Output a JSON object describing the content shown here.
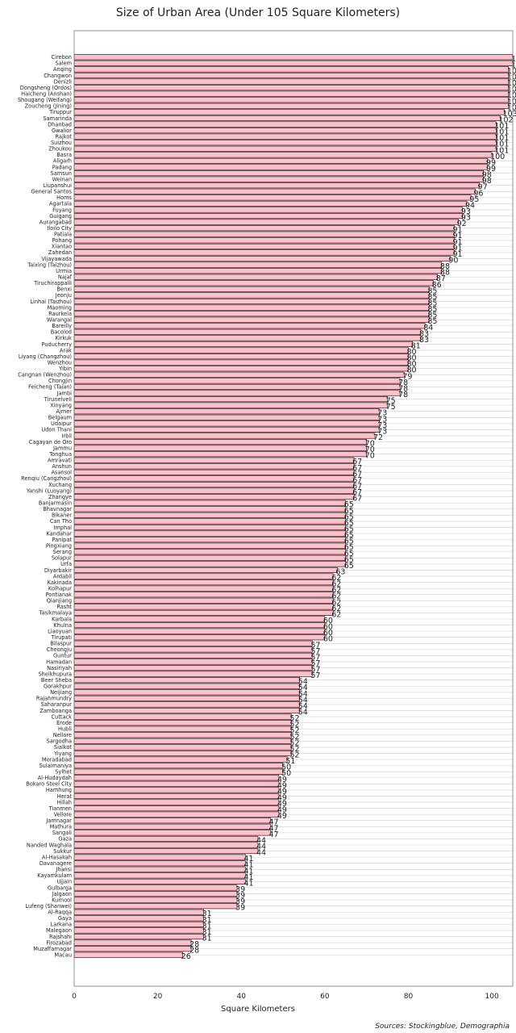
{
  "chart_data": {
    "type": "bar",
    "orientation": "horizontal",
    "title": "Size of Urban Area (Under 105 Square Kilometers)",
    "xlabel": "Square Kilometers",
    "ylabel": "",
    "xlim": [
      0,
      105
    ],
    "xticks": [
      0,
      20,
      40,
      60,
      80,
      100
    ],
    "bar_color": "#ffc0cb",
    "bar_edge_color": "#000000",
    "categories": [
      "Cirebon",
      "Salem",
      "Anqing",
      "Changwon",
      "Denizli",
      "Dongsheng (Ordos)",
      "Haicheng (Anshan)",
      "Shougang (Weifang)",
      "Zoucheng (Jining)",
      "Tiruppur",
      "Samarinda",
      "Dhanbad",
      "Gwalior",
      "Rajkot",
      "Suizhou",
      "Zhoukou",
      "Basra",
      "Aligarh",
      "Padang",
      "Samsun",
      "Weinan",
      "Liupanshui",
      "General Santos",
      "Homs",
      "Agartala",
      "Fuyang",
      "Guigang",
      "Aurangabad",
      "Iloilo City",
      "Patiala",
      "Pohang",
      "Xiantao",
      "Zahedan",
      "Vijayawada",
      "Taixing (Taizhou)",
      "Urmia",
      "Najaf",
      "Tiruchirappalli",
      "Benxi",
      "Jeonju",
      "Linhai (Taizhou)",
      "Maoming",
      "Raurkela",
      "Warangal",
      "Bareilly",
      "Bacolod",
      "Kirkuk",
      "Puducherry",
      "Arak",
      "Liyang (Changzhou)",
      "Wenzhou",
      "Yibin",
      "Cangnan (Wenzhou)",
      "Chongjin",
      "Feicheng (Taian)",
      "Jambi",
      "Tirunelveli",
      "Xinyang",
      "Ajmer",
      "Belgaum",
      "Udaipur",
      "Udon Thani",
      "Irbil",
      "Cagayan de Oro",
      "Jammu",
      "Tonghua",
      "Amravati",
      "Anshun",
      "Asansol",
      "Renqiu (Cangzhou)",
      "Xuchang",
      "Yanshi (Luoyang)",
      "Zhangye",
      "Banjarmasin",
      "Bhavnagar",
      "Bikaner",
      "Can Tho",
      "Imphal",
      "Kandahar",
      "Panipat",
      "Pingxiang",
      "Serang",
      "Solapur",
      "Urfa",
      "Diyarbakir",
      "Ardabil",
      "Kakinada",
      "Kolhapur",
      "Pontianak",
      "Qianjiang",
      "Rasht",
      "Tasikmalaya",
      "Karbala",
      "Khulna",
      "Liaoyuan",
      "Tirupati",
      "Bilaspur",
      "Cheongju",
      "Guntur",
      "Hamadan",
      "Nasiriyah",
      "Sheikhupura",
      "Beer Sheba",
      "Gorakhpur",
      "Neijiang",
      "Rajahmundry",
      "Saharanpur",
      "Zamboanga",
      "Cuttack",
      "Erode",
      "Hubli",
      "Nellore",
      "Sargodha",
      "Sialkot",
      "Yiyang",
      "Moradabad",
      "Sulaimaniya",
      "Sylhet",
      "Al-Hudaydah",
      "Bokaro Steel City",
      "Hamhung",
      "Herat",
      "Hillah",
      "Tianmen",
      "Vellore",
      "Jamnagar",
      "Mathura",
      "Sangali",
      "Gaza",
      "Nanded Waghala",
      "Sukkur",
      "Al-Hasakah",
      "Davanagere",
      "Jhansi",
      "Kayamkulam",
      "Ujjain",
      "Gulbarga",
      "Jalgaon",
      "Kurnool",
      "Lufeng (Shanwei)",
      "Al-Raqqa",
      "Gaya",
      "Larkana",
      "Malegaon",
      "Rajshahi",
      "Firozabad",
      "Muzaffarnagar",
      "Macau"
    ],
    "values": [
      105,
      105,
      104,
      104,
      104,
      104,
      104,
      104,
      104,
      103,
      102,
      101,
      101,
      101,
      101,
      101,
      100,
      99,
      99,
      98,
      98,
      97,
      96,
      95,
      94,
      93,
      93,
      92,
      91,
      91,
      91,
      91,
      91,
      90,
      88,
      88,
      87,
      86,
      85,
      85,
      85,
      85,
      85,
      85,
      84,
      83,
      83,
      81,
      80,
      80,
      80,
      80,
      79,
      78,
      78,
      78,
      75,
      75,
      73,
      73,
      73,
      73,
      72,
      70,
      70,
      70,
      67,
      67,
      67,
      67,
      67,
      67,
      67,
      65,
      65,
      65,
      65,
      65,
      65,
      65,
      65,
      65,
      65,
      65,
      63,
      62,
      62,
      62,
      62,
      62,
      62,
      62,
      60,
      60,
      60,
      60,
      57,
      57,
      57,
      57,
      57,
      57,
      54,
      54,
      54,
      54,
      54,
      54,
      52,
      52,
      52,
      52,
      52,
      52,
      52,
      51,
      50,
      50,
      49,
      49,
      49,
      49,
      49,
      49,
      49,
      47,
      47,
      47,
      44,
      44,
      44,
      41,
      41,
      41,
      41,
      41,
      39,
      39,
      39,
      39,
      31,
      31,
      31,
      31,
      31,
      28,
      28,
      26
    ]
  },
  "sources": "Sources: Stockingblue, Demographia"
}
